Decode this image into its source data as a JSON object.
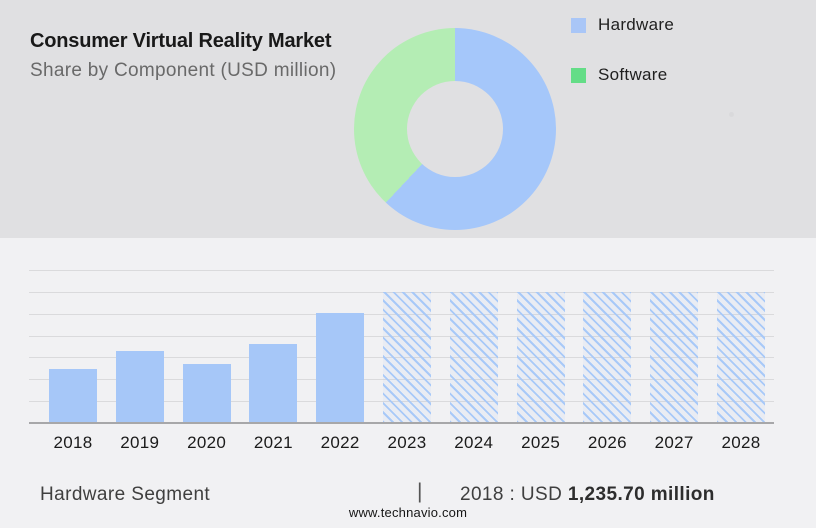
{
  "header": {
    "title": "Consumer Virtual Reality Market",
    "subtitle": "Share by Component (USD million)"
  },
  "legend": {
    "items": [
      {
        "label": "Hardware",
        "color": "#a9c6f7"
      },
      {
        "label": "Software",
        "color": "#64dd87"
      }
    ]
  },
  "colors": {
    "hero_background": "#e0e0e2",
    "page_background": "#f1f1f3",
    "bar_blue": "#a6c7f8",
    "donut_blue": "#a5c7fa",
    "donut_green": "#b4edb4"
  },
  "chart_data": [
    {
      "type": "pie",
      "donut": true,
      "title": "Share by Component (USD million)",
      "legend_position": "right",
      "slices": [
        {
          "label": "Hardware",
          "share_pct": 62,
          "color": "#a5c7fa"
        },
        {
          "label": "Software",
          "share_pct": 38,
          "color": "#b4edb4"
        }
      ]
    },
    {
      "type": "bar",
      "title": "Consumer Virtual Reality Market size (USD million), estimated from chart",
      "categories": [
        "2018",
        "2019",
        "2020",
        "2021",
        "2022",
        "2023",
        "2024",
        "2025",
        "2026",
        "2027",
        "2028"
      ],
      "values": [
        1235.7,
        1640,
        1350,
        1810,
        2520,
        2990,
        2990,
        2990,
        2990,
        2990,
        2990
      ],
      "forecast_start_index": 5,
      "xlabel": "",
      "ylabel": "",
      "ylim": [
        0,
        3500
      ],
      "gridline_step": 500,
      "grid": "horizontal",
      "value_axis_labels_shown": false
    }
  ],
  "footer": {
    "segment_label": "Hardware Segment",
    "separator": "|",
    "value_prefix": "2018 : USD ",
    "value_bold": "1,235.70 million",
    "website": "www.technavio.com"
  }
}
